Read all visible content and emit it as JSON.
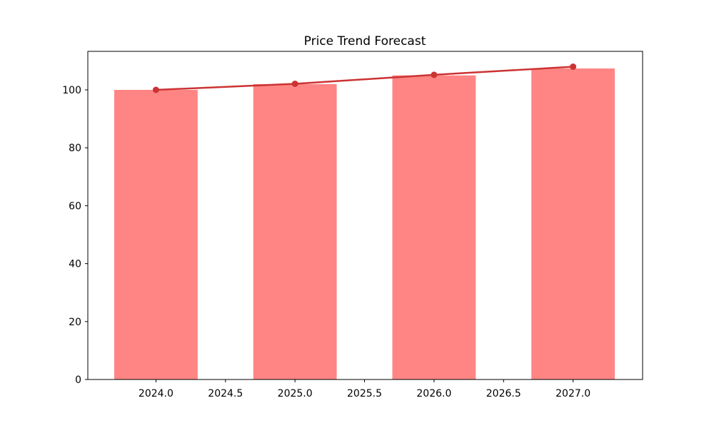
{
  "chart_data": {
    "type": "bar",
    "title": "Price Trend Forecast",
    "xlabel": "",
    "ylabel": "",
    "x": [
      2024,
      2025,
      2026,
      2027
    ],
    "series": [
      {
        "name": "price-bars",
        "type": "bar",
        "values": [
          100.0,
          102.0,
          105.0,
          107.4
        ],
        "color": "#ff8584",
        "bar_width": 0.6
      },
      {
        "name": "trend-line",
        "type": "line",
        "values": [
          100.0,
          102.1,
          105.2,
          108.0
        ],
        "color": "#cc3333",
        "marker": "circle"
      }
    ],
    "xlim": [
      2023.51,
      2027.5
    ],
    "ylim": [
      0,
      113.3
    ],
    "x_ticks": [
      2024.0,
      2024.5,
      2025.0,
      2025.5,
      2026.0,
      2026.5,
      2027.0
    ],
    "x_tick_labels": [
      "2024.0",
      "2024.5",
      "2025.0",
      "2025.5",
      "2026.0",
      "2026.5",
      "2027.0"
    ],
    "y_ticks": [
      0,
      20,
      40,
      60,
      80,
      100
    ],
    "y_tick_labels": [
      "0",
      "20",
      "40",
      "60",
      "80",
      "100"
    ],
    "grid": false,
    "legend": null,
    "colors": {
      "background": "#ffffff",
      "axis": "#000000",
      "tick_label": "#000000",
      "title": "#000000"
    }
  }
}
